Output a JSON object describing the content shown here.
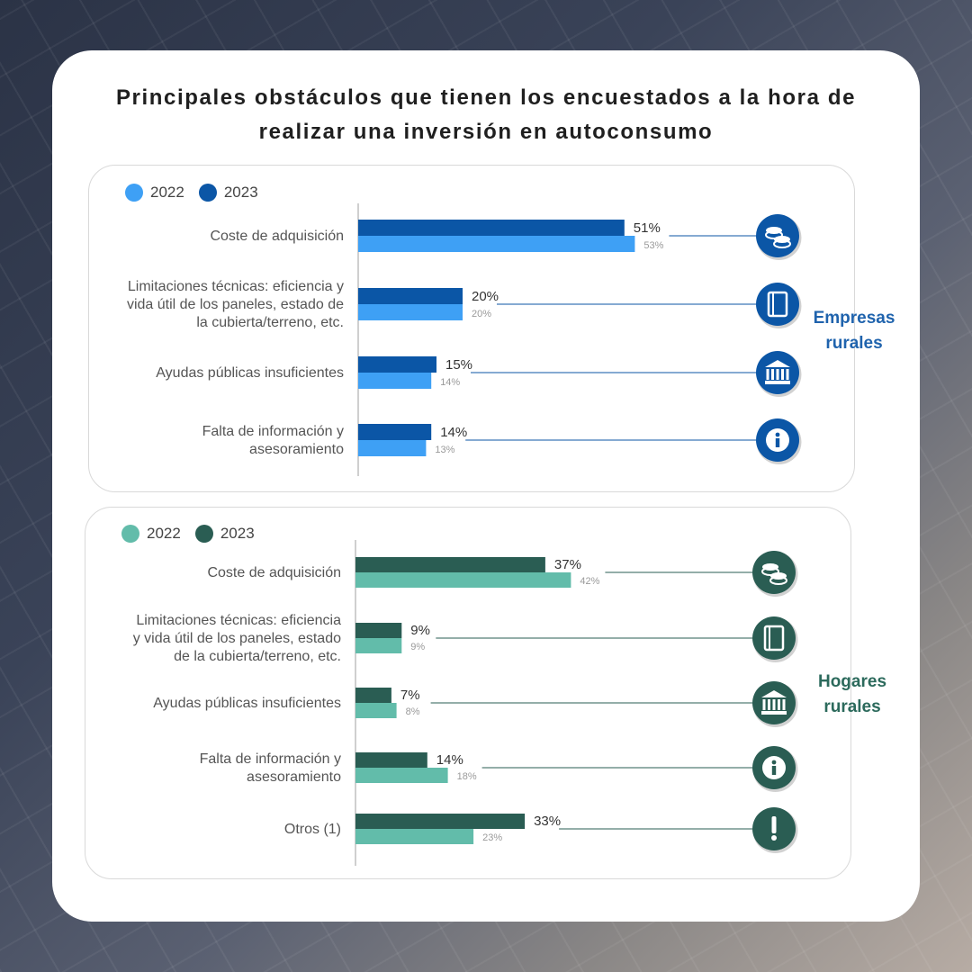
{
  "title": "Principales obstáculos que tienen los encuestados a la hora de realizar una inversión en autoconsumo",
  "title_lines": [
    "Principales obstáculos que tienen los encuestados a la hora de",
    "realizar una inversión en autoconsumo"
  ],
  "chart_data": [
    {
      "type": "bar",
      "orientation": "horizontal",
      "group_label": "Empresas rurales",
      "group_label_lines": [
        "Empresas",
        "rurales"
      ],
      "categories": [
        "Coste de adquisición",
        "Limitaciones técnicas: eficiencia y vida útil de los paneles, estado de la cubierta/terreno, etc.",
        "Ayudas públicas insuficientes",
        "Falta de información y asesoramiento"
      ],
      "category_lines": [
        [
          "Coste de adquisición"
        ],
        [
          "Limitaciones técnicas: eficiencia y",
          "vida útil de los paneles, estado de",
          "la cubierta/terreno, etc."
        ],
        [
          "Ayudas públicas insuficientes"
        ],
        [
          "Falta de información y",
          "asesoramiento"
        ]
      ],
      "series": [
        {
          "name": "2023",
          "values": [
            51,
            20,
            15,
            14
          ],
          "color": "#0b56a6"
        },
        {
          "name": "2022",
          "values": [
            53,
            20,
            14,
            13
          ],
          "color": "#3ea0f5"
        }
      ],
      "legend_order": [
        "2022",
        "2023"
      ],
      "value_suffix": "%",
      "icons": [
        "coins-icon",
        "notebook-icon",
        "bank-icon",
        "info-icon"
      ],
      "icon_color": "#0b56a6",
      "label_color": "#1f63ad"
    },
    {
      "type": "bar",
      "orientation": "horizontal",
      "group_label": "Hogares rurales",
      "group_label_lines": [
        "Hogares",
        "rurales"
      ],
      "categories": [
        "Coste de adquisición",
        "Limitaciones técnicas: eficiencia y vida útil de los paneles, estado de la cubierta/terreno, etc.",
        "Ayudas públicas insuficientes",
        "Falta de información y asesoramiento",
        "Otros (1)"
      ],
      "category_lines": [
        [
          "Coste de adquisición"
        ],
        [
          "Limitaciones técnicas: eficiencia",
          "y vida útil de los paneles, estado",
          "de la cubierta/terreno, etc."
        ],
        [
          "Ayudas públicas insuficientes"
        ],
        [
          "Falta de información y",
          "asesoramiento"
        ],
        [
          "Otros (1)"
        ]
      ],
      "series": [
        {
          "name": "2023",
          "values": [
            37,
            9,
            7,
            14,
            33
          ],
          "color": "#2a5d53"
        },
        {
          "name": "2022",
          "values": [
            42,
            9,
            8,
            18,
            23
          ],
          "color": "#62bcaa"
        }
      ],
      "legend_order": [
        "2022",
        "2023"
      ],
      "value_suffix": "%",
      "icons": [
        "coins-icon",
        "notebook-icon",
        "bank-icon",
        "info-icon",
        "exclamation-icon"
      ],
      "icon_color": "#2a5d53",
      "label_color": "#2c6a5c"
    }
  ]
}
